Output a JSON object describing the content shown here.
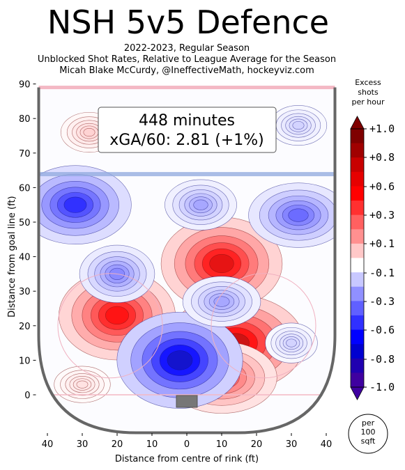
{
  "header": {
    "title": "NSH 5v5 Defence",
    "subtitle_lines": [
      "2022-2023, Regular Season",
      "Unblocked Shot Rates, Relative to League Average for the Season",
      "Micah Blake McCurdy, @IneffectiveMath, hockeyviz.com"
    ]
  },
  "annotation": {
    "line1": "448 minutes",
    "line2": "xGA/60: 2.81 (+1%)"
  },
  "colorbar": {
    "title_lines": [
      "Excess",
      "shots",
      "per hour"
    ],
    "ticks": [
      "+1.0",
      "+0.8",
      "+0.6",
      "+0.3",
      "+0.1",
      "-0.1",
      "-0.3",
      "-0.6",
      "-0.8",
      "-1.0"
    ],
    "unit_lines": [
      "per",
      "100",
      "sqft"
    ],
    "colors_top_to_bottom": [
      "#7f0000",
      "#a00000",
      "#c80000",
      "#e60000",
      "#ff0000",
      "#ff3030",
      "#ff6060",
      "#ff9090",
      "#ffc8c8",
      "#ffffff",
      "#c8c8ff",
      "#9090ff",
      "#6060ff",
      "#3030ff",
      "#0000ff",
      "#0000d0",
      "#2000b0",
      "#3f00a0"
    ]
  },
  "colors": {
    "positive": "#ff2020",
    "negative": "#2020ff",
    "boards": "#666666",
    "blue_line": "#8fa8dd",
    "red_line": "#f4b8c4"
  },
  "chart_data": {
    "type": "heatmap",
    "xlabel": "Distance from centre of rink (ft)",
    "ylabel": "Distance from goal line (ft)",
    "xlim": [
      -42.5,
      42.5
    ],
    "ylim": [
      -11,
      90
    ],
    "x_ticks": [
      -40,
      -30,
      -20,
      -10,
      0,
      10,
      20,
      30,
      40
    ],
    "x_tick_labels": [
      "40",
      "30",
      "20",
      "10",
      "0",
      "10",
      "20",
      "30",
      "40"
    ],
    "y_ticks": [
      0,
      10,
      20,
      30,
      40,
      50,
      60,
      70,
      80,
      90
    ],
    "y_tick_labels": [
      "0",
      "10",
      "20",
      "30",
      "40",
      "50",
      "60",
      "70",
      "80",
      "90"
    ],
    "value_range": [
      -1.0,
      1.0
    ],
    "hotspots": [
      {
        "x": 10,
        "y": 38,
        "value": 0.9
      },
      {
        "x": 14,
        "y": 15,
        "value": 0.95
      },
      {
        "x": 10,
        "y": 5,
        "value": 0.6
      },
      {
        "x": -20,
        "y": 23,
        "value": 0.85
      },
      {
        "x": -28,
        "y": 76,
        "value": 0.15
      },
      {
        "x": -30,
        "y": 3,
        "value": 0.1
      },
      {
        "x": -2,
        "y": 10,
        "value": -0.95
      },
      {
        "x": -32,
        "y": 55,
        "value": -0.7
      },
      {
        "x": 32,
        "y": 52,
        "value": -0.5
      },
      {
        "x": -20,
        "y": 35,
        "value": -0.4
      },
      {
        "x": 4,
        "y": 55,
        "value": -0.3
      },
      {
        "x": 10,
        "y": 27,
        "value": -0.3
      },
      {
        "x": 30,
        "y": 15,
        "value": -0.15
      },
      {
        "x": 32,
        "y": 78,
        "value": -0.15
      }
    ]
  }
}
